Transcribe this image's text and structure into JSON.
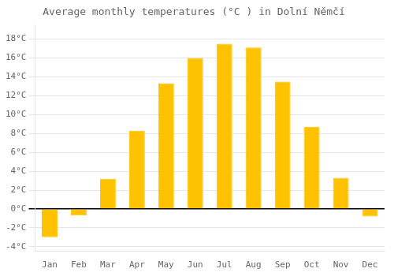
{
  "chart_data": {
    "type": "bar",
    "title": "Average monthly temperatures (°C ) in Dolní Němčí",
    "categories": [
      "Jan",
      "Feb",
      "Mar",
      "Apr",
      "May",
      "Jun",
      "Jul",
      "Aug",
      "Sep",
      "Oct",
      "Nov",
      "Dec"
    ],
    "values": [
      -3.0,
      -0.7,
      3.2,
      8.3,
      13.3,
      16.0,
      17.5,
      17.1,
      13.5,
      8.7,
      3.3,
      -0.8
    ],
    "color": "#FFC200",
    "ylim": [
      -4.5,
      19.5
    ],
    "yticks": [
      {
        "value": -4,
        "label": "-4°C"
      },
      {
        "value": -2,
        "label": "-2°C"
      },
      {
        "value": 0,
        "label": "0°C"
      },
      {
        "value": 2,
        "label": "2°C"
      },
      {
        "value": 4,
        "label": "4°C"
      },
      {
        "value": 6,
        "label": "6°C"
      },
      {
        "value": 8,
        "label": "8°C"
      },
      {
        "value": 10,
        "label": "10°C"
      },
      {
        "value": 12,
        "label": "12°C"
      },
      {
        "value": 14,
        "label": "14°C"
      },
      {
        "value": 16,
        "label": "16°C"
      },
      {
        "value": 18,
        "label": "18°C"
      }
    ],
    "grid": true
  }
}
